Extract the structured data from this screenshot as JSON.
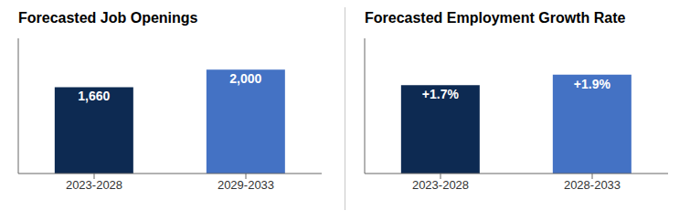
{
  "chart_data": [
    {
      "type": "bar",
      "title": "Forecasted Job Openings",
      "categories": [
        "2023-2028",
        "2029-2033"
      ],
      "values": [
        1660,
        2000
      ],
      "value_labels": [
        "1,660",
        "2,000"
      ],
      "colors": [
        "#0d2a52",
        "#4472c4"
      ],
      "ylim": [
        0,
        2600
      ],
      "data_labels": true,
      "tick_labels": "x"
    },
    {
      "type": "bar",
      "title": "Forecasted Employment Growth Rate",
      "categories": [
        "2023-2028",
        "2028-2033"
      ],
      "values": [
        1.7,
        1.9
      ],
      "value_labels": [
        "+1.7%",
        "+1.9%"
      ],
      "colors": [
        "#0d2a52",
        "#4472c4"
      ],
      "ylim": [
        0,
        2.6
      ],
      "data_labels": true,
      "tick_labels": "x"
    }
  ]
}
